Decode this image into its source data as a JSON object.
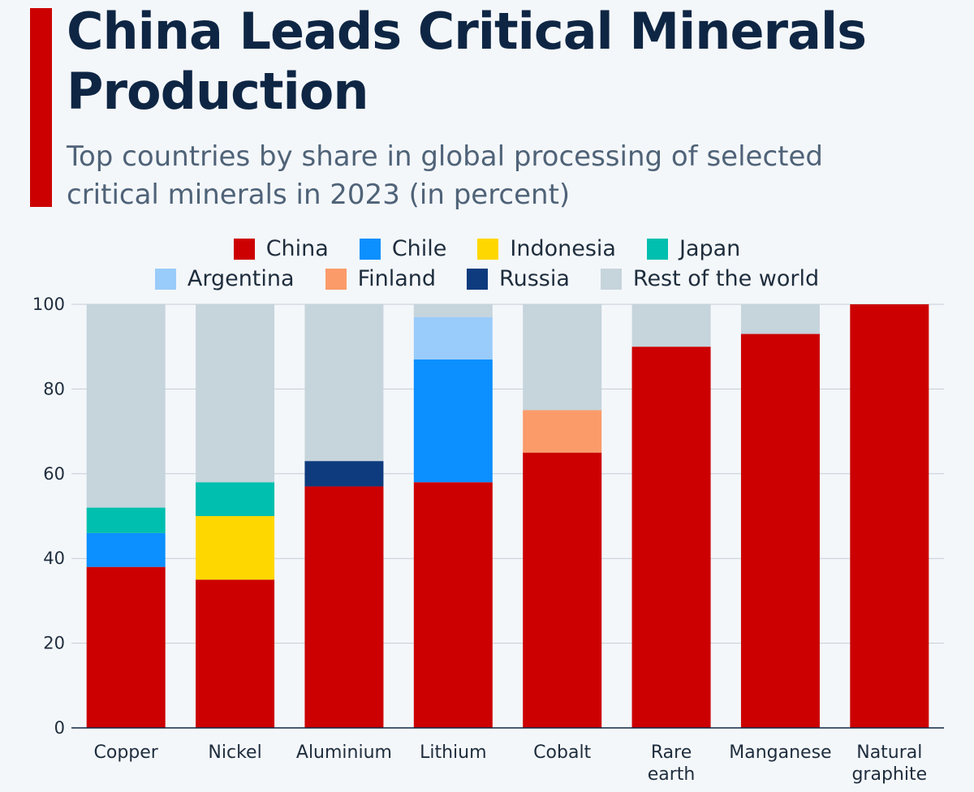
{
  "title": "China Leads Critical Minerals Production",
  "subtitle": "Top countries by share in global processing of selected critical minerals in 2023 (in percent)",
  "colors": {
    "accent": "#cc0000",
    "title": "#0e2644",
    "subtitle": "#4f6378",
    "background": "#f4f7fa",
    "grid": "#c5ced6",
    "axis": "#0e2644"
  },
  "legend": [
    [
      {
        "key": "china",
        "label": "China",
        "color": "#cc0000"
      },
      {
        "key": "chile",
        "label": "Chile",
        "color": "#0c8fff"
      },
      {
        "key": "indonesia",
        "label": "Indonesia",
        "color": "#ffd700"
      },
      {
        "key": "japan",
        "label": "Japan",
        "color": "#00bfae"
      }
    ],
    [
      {
        "key": "argentina",
        "label": "Argentina",
        "color": "#99ccfa"
      },
      {
        "key": "finland",
        "label": "Finland",
        "color": "#fb9b6a"
      },
      {
        "key": "russia",
        "label": "Russia",
        "color": "#0d3b7d"
      },
      {
        "key": "rest",
        "label": "Rest of the world",
        "color": "#c6d4dc"
      }
    ]
  ],
  "chart_data": {
    "type": "bar",
    "stacked": true,
    "title": "China Leads Critical Minerals Production",
    "subtitle": "Top countries by share in global processing of selected critical minerals in 2023 (in percent)",
    "categories": [
      "Copper",
      "Nickel",
      "Aluminium",
      "Lithium",
      "Cobalt",
      "Rare earth",
      "Manganese",
      "Natural graphite"
    ],
    "category_lines": [
      [
        "Copper"
      ],
      [
        "Nickel"
      ],
      [
        "Aluminium"
      ],
      [
        "Lithium"
      ],
      [
        "Cobalt"
      ],
      [
        "Rare",
        "earth"
      ],
      [
        "Manganese"
      ],
      [
        "Natural",
        "graphite"
      ]
    ],
    "ylim": [
      0,
      100
    ],
    "yticks": [
      0,
      20,
      40,
      60,
      80,
      100
    ],
    "grid": true,
    "legend_position": "top-center",
    "series": [
      {
        "name": "China",
        "key": "china",
        "color": "#cc0000",
        "values": [
          38,
          35,
          57,
          58,
          65,
          90,
          93,
          100
        ]
      },
      {
        "name": "Chile",
        "key": "chile",
        "color": "#0c8fff",
        "values": [
          8,
          0,
          0,
          29,
          0,
          0,
          0,
          0
        ]
      },
      {
        "name": "Indonesia",
        "key": "indonesia",
        "color": "#ffd700",
        "values": [
          0,
          15,
          0,
          0,
          0,
          0,
          0,
          0
        ]
      },
      {
        "name": "Japan",
        "key": "japan",
        "color": "#00bfae",
        "values": [
          6,
          8,
          0,
          0,
          0,
          0,
          0,
          0
        ]
      },
      {
        "name": "Argentina",
        "key": "argentina",
        "color": "#99ccfa",
        "values": [
          0,
          0,
          0,
          10,
          0,
          0,
          0,
          0
        ]
      },
      {
        "name": "Finland",
        "key": "finland",
        "color": "#fb9b6a",
        "values": [
          0,
          0,
          0,
          0,
          10,
          0,
          0,
          0
        ]
      },
      {
        "name": "Russia",
        "key": "russia",
        "color": "#0d3b7d",
        "values": [
          0,
          0,
          6,
          0,
          0,
          0,
          0,
          0
        ]
      },
      {
        "name": "Rest of the world",
        "key": "rest",
        "color": "#c6d4dc",
        "values": [
          48,
          42,
          37,
          3,
          25,
          10,
          7,
          0
        ]
      }
    ]
  }
}
